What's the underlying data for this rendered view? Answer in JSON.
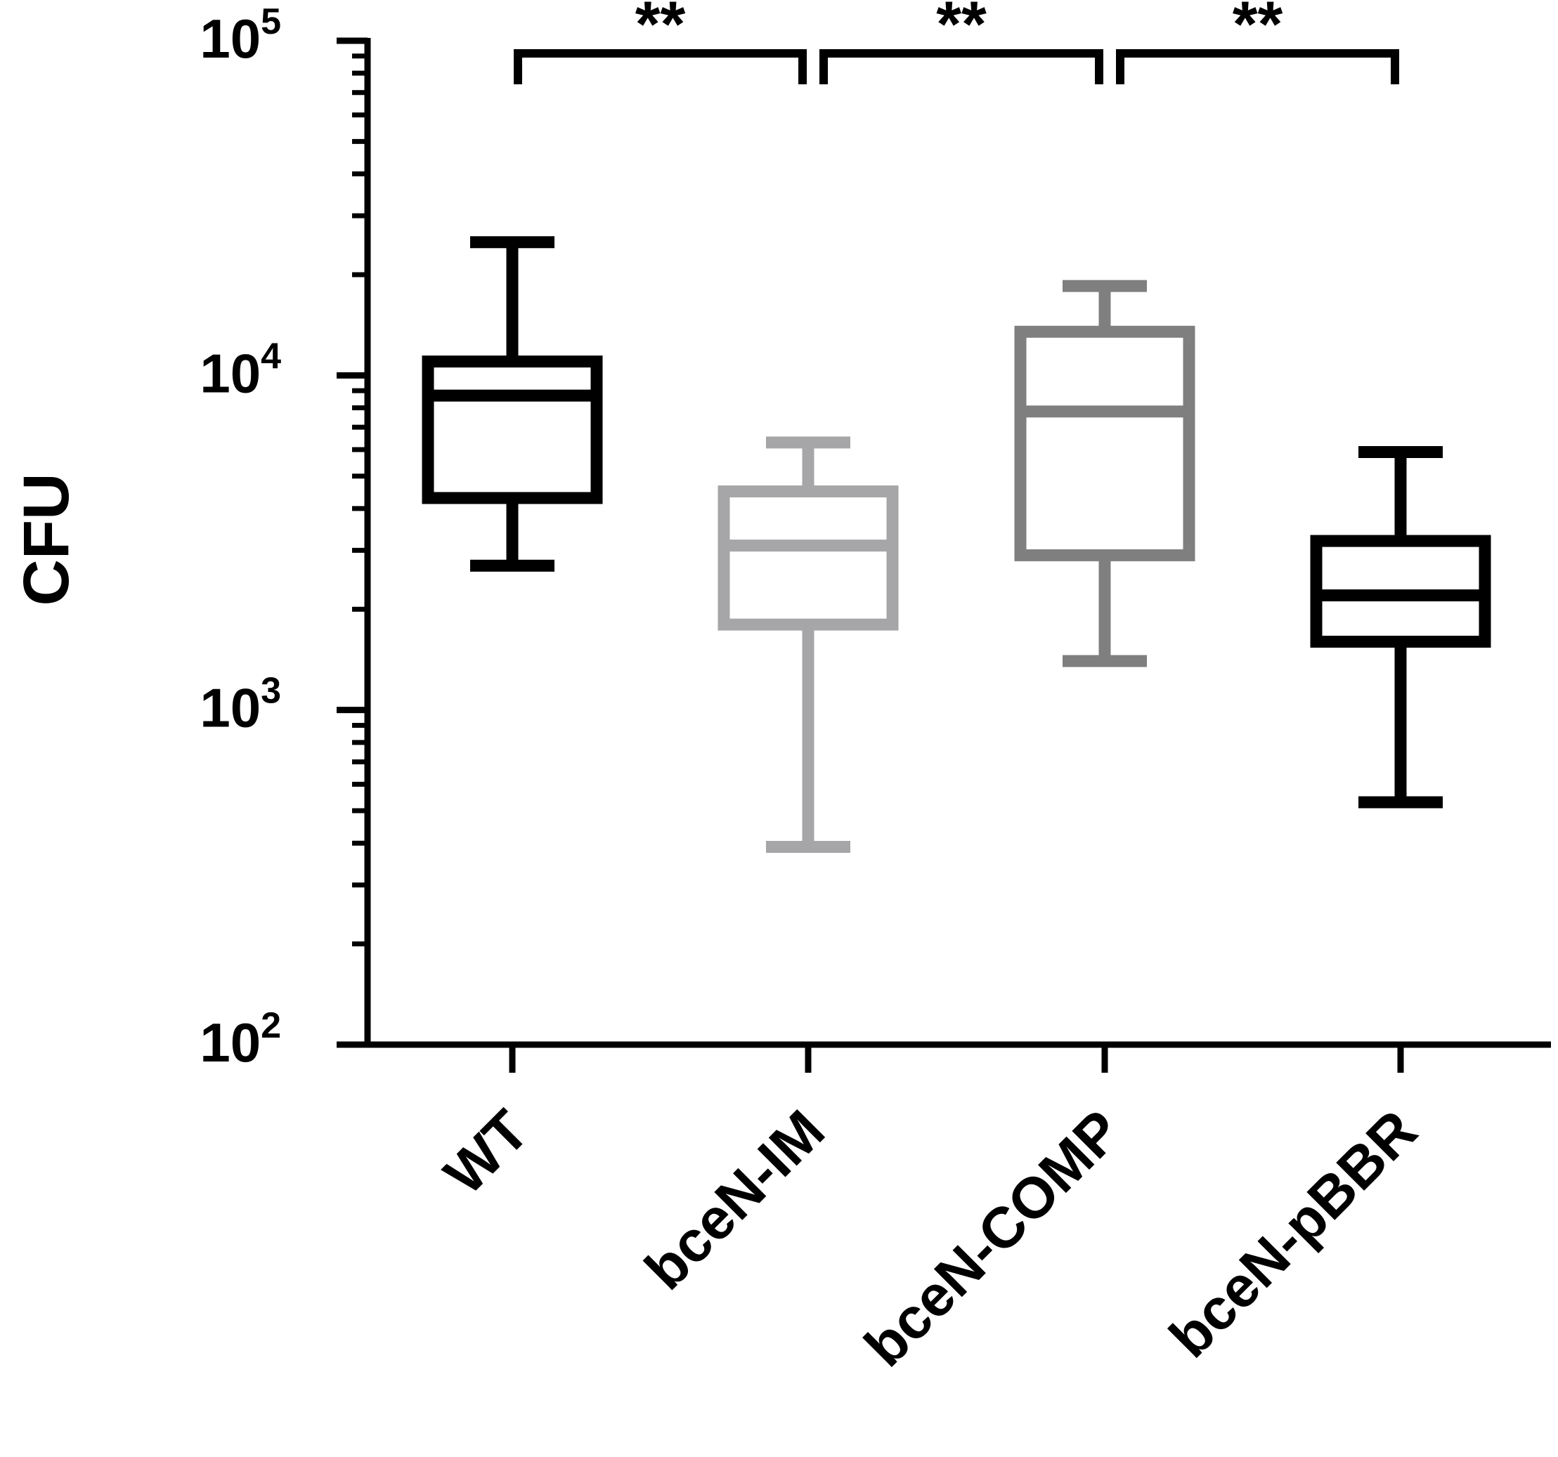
{
  "chart_data": {
    "type": "boxplot",
    "title": "",
    "ylabel": "CFU",
    "xlabel": "",
    "yscale": "log",
    "ylim": [
      100,
      100000
    ],
    "y_ticks": [
      {
        "value": 100,
        "base": "10",
        "exp": "2"
      },
      {
        "value": 1000,
        "base": "10",
        "exp": "3"
      },
      {
        "value": 10000,
        "base": "10",
        "exp": "4"
      },
      {
        "value": 100000,
        "base": "10",
        "exp": "5"
      }
    ],
    "categories": [
      "WT",
      "bceN-IM",
      "bceN-COMP",
      "bceN-pBBR"
    ],
    "boxes": [
      {
        "category": "WT",
        "min": 2700,
        "q1": 4300,
        "median": 8700,
        "q3": 11000,
        "max": 25000,
        "color": "#000000"
      },
      {
        "category": "bceN-IM",
        "min": 390,
        "q1": 1800,
        "median": 3100,
        "q3": 4500,
        "max": 6300,
        "color": "#a6a6a8"
      },
      {
        "category": "bceN-COMP",
        "min": 1400,
        "q1": 2900,
        "median": 7800,
        "q3": 13500,
        "max": 18500,
        "color": "#7f7f7f"
      },
      {
        "category": "bceN-pBBR",
        "min": 530,
        "q1": 1600,
        "median": 2200,
        "q3": 3200,
        "max": 5900,
        "color": "#000000"
      }
    ],
    "significance": [
      {
        "from": "WT",
        "to": "bceN-IM",
        "label": "**"
      },
      {
        "from": "bceN-IM",
        "to": "bceN-COMP",
        "label": "**"
      },
      {
        "from": "bceN-COMP",
        "to": "bceN-pBBR",
        "label": "**"
      }
    ],
    "grid": false,
    "legend": "none"
  }
}
